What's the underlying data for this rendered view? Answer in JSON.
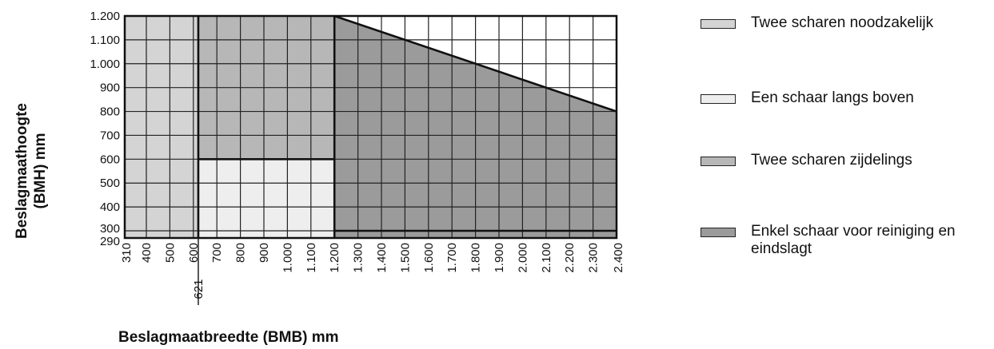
{
  "chart_data": {
    "type": "area",
    "xlabel": "Beslagmaatbreedte (BMB) mm",
    "ylabel_line1": "Beslagmaathoogte",
    "ylabel_line2": "(BMH) mm",
    "xlim": [
      310,
      2400
    ],
    "ylim": [
      290,
      1200
    ],
    "x_ticks": [
      {
        "value": 310,
        "label": "310"
      },
      {
        "value": 400,
        "label": "400"
      },
      {
        "value": 500,
        "label": "500"
      },
      {
        "value": 600,
        "label": "600"
      },
      {
        "value": 700,
        "label": "700"
      },
      {
        "value": 800,
        "label": "800"
      },
      {
        "value": 900,
        "label": "900"
      },
      {
        "value": 1000,
        "label": "1.000"
      },
      {
        "value": 1100,
        "label": "1.100"
      },
      {
        "value": 1200,
        "label": "1.200"
      },
      {
        "value": 1300,
        "label": "1.300"
      },
      {
        "value": 1400,
        "label": "1.400"
      },
      {
        "value": 1500,
        "label": "1.500"
      },
      {
        "value": 1600,
        "label": "1.600"
      },
      {
        "value": 1700,
        "label": "1.700"
      },
      {
        "value": 1800,
        "label": "1.800"
      },
      {
        "value": 1900,
        "label": "1.900"
      },
      {
        "value": 2000,
        "label": "2.000"
      },
      {
        "value": 2100,
        "label": "2.100"
      },
      {
        "value": 2200,
        "label": "2.200"
      },
      {
        "value": 2300,
        "label": "2.300"
      },
      {
        "value": 2400,
        "label": "2.400"
      }
    ],
    "x_marker": {
      "value": 621,
      "label": "621"
    },
    "y_ticks": [
      {
        "value": 290,
        "label": "290"
      },
      {
        "value": 300,
        "label": "300"
      },
      {
        "value": 400,
        "label": "400"
      },
      {
        "value": 500,
        "label": "500"
      },
      {
        "value": 600,
        "label": "600"
      },
      {
        "value": 700,
        "label": "700"
      },
      {
        "value": 800,
        "label": "800"
      },
      {
        "value": 900,
        "label": "900"
      },
      {
        "value": 1000,
        "label": "1.000"
      },
      {
        "value": 1100,
        "label": "1.100"
      },
      {
        "value": 1200,
        "label": "1.200"
      }
    ],
    "regions": [
      {
        "name": "Twee scharen noodzakelijk",
        "color": "#d4d4d4",
        "polygon": [
          [
            310,
            290
          ],
          [
            621,
            290
          ],
          [
            621,
            1200
          ],
          [
            310,
            1200
          ]
        ]
      },
      {
        "name": "Twee scharen zijdelings",
        "color": "#b7b7b7",
        "polygon": [
          [
            621,
            600
          ],
          [
            1200,
            600
          ],
          [
            1200,
            1200
          ],
          [
            621,
            1200
          ]
        ]
      },
      {
        "name": "Een schaar langs boven",
        "color": "#eeeeee",
        "polygon": [
          [
            621,
            290
          ],
          [
            1200,
            290
          ],
          [
            1200,
            600
          ],
          [
            621,
            600
          ]
        ]
      },
      {
        "name": "Enkel schaar voor reiniging en eindslagt",
        "color": "#9b9b9b",
        "polygon": [
          [
            1200,
            290
          ],
          [
            2400,
            290
          ],
          [
            2400,
            800
          ],
          [
            1200,
            1200
          ]
        ]
      }
    ],
    "boundary_lines": [
      [
        [
          621,
          290
        ],
        [
          621,
          1200
        ]
      ],
      [
        [
          621,
          600
        ],
        [
          1200,
          600
        ]
      ],
      [
        [
          1200,
          290
        ],
        [
          1200,
          1200
        ]
      ],
      [
        [
          1200,
          1200
        ],
        [
          2400,
          800
        ]
      ],
      [
        [
          1200,
          300
        ],
        [
          2400,
          300
        ]
      ]
    ]
  },
  "legend": [
    {
      "label": "Twee scharen noodzakelijk",
      "color": "#d4d4d4"
    },
    {
      "label": "Een schaar langs boven",
      "color": "#eeeeee"
    },
    {
      "label": "Twee scharen zijdelings",
      "color": "#b7b7b7"
    },
    {
      "label": "Enkel schaar voor reiniging en eindslagt",
      "color": "#9b9b9b"
    }
  ]
}
